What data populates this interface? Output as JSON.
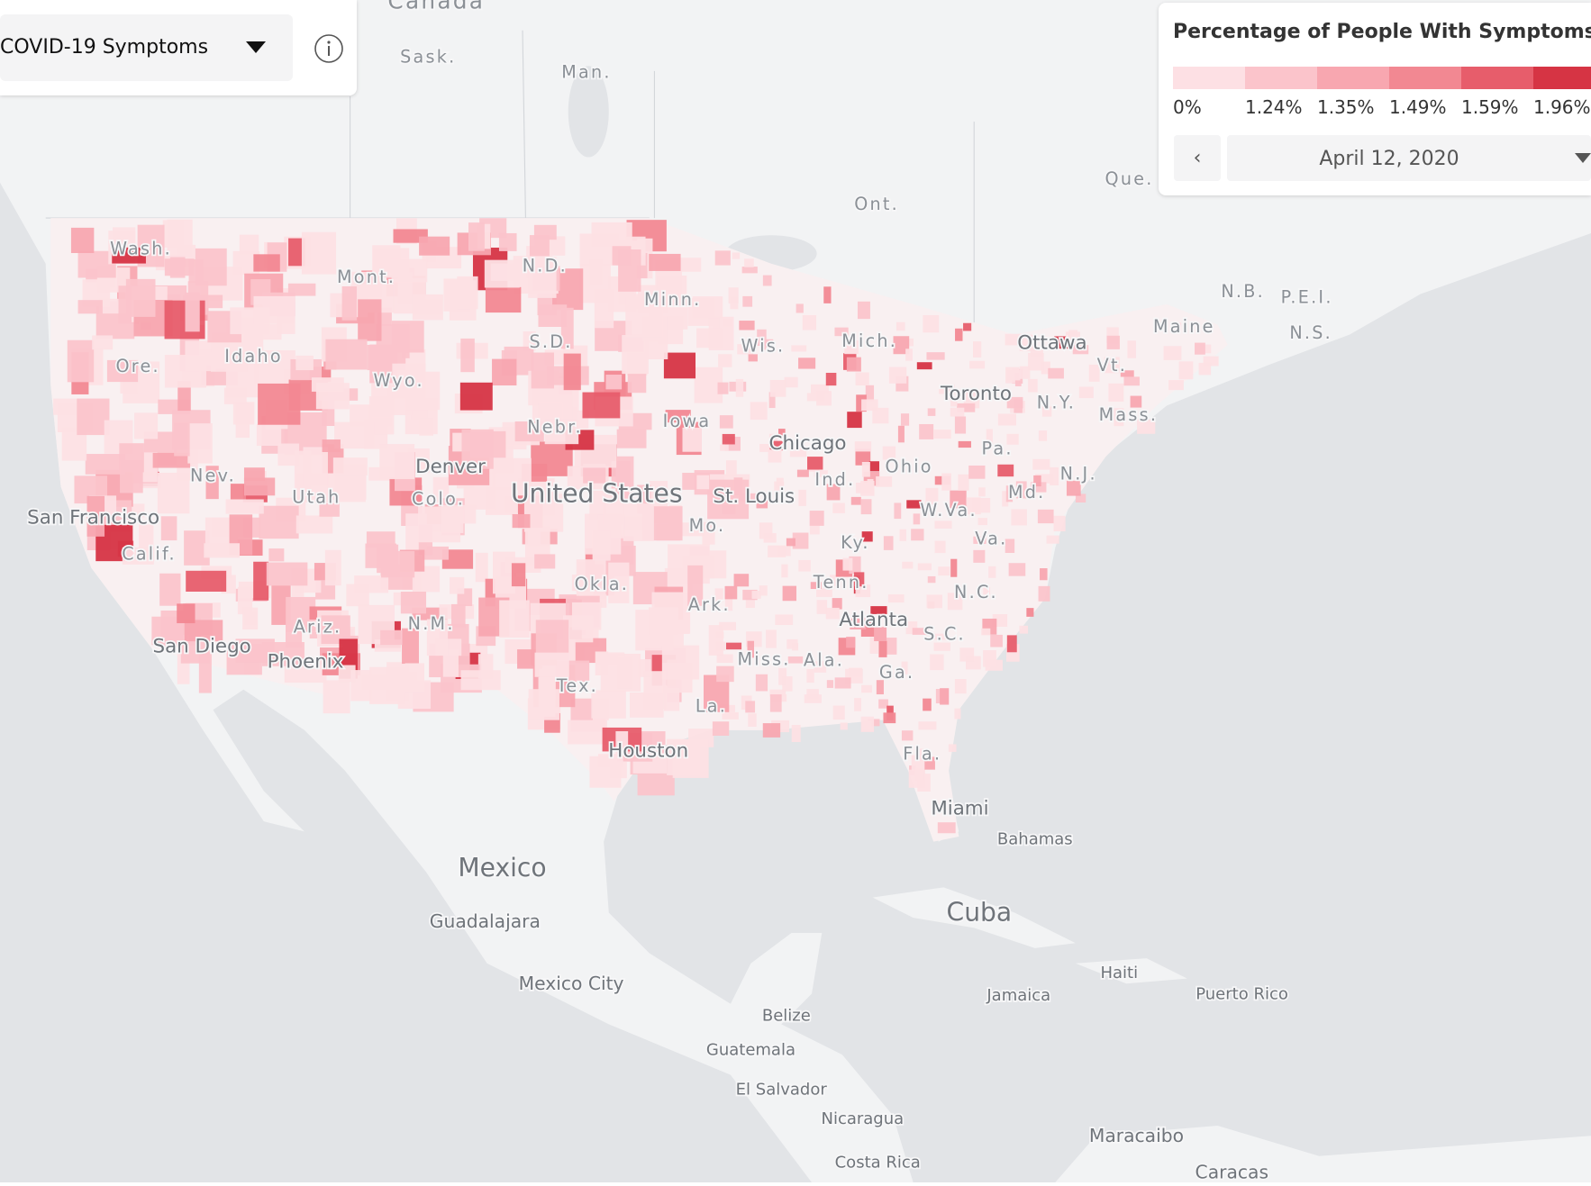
{
  "dropdown": {
    "label": "COVID-19 Symptoms"
  },
  "legend": {
    "title": "Percentage of People With Symptoms",
    "bins": [
      {
        "label": "0%",
        "color": "#fde0e4"
      },
      {
        "label": "1.24%",
        "color": "#fbc4cb"
      },
      {
        "label": "1.35%",
        "color": "#f8a7b0"
      },
      {
        "label": "1.49%",
        "color": "#f28892"
      },
      {
        "label": "1.59%",
        "color": "#e75d6b"
      },
      {
        "label": "1.96%",
        "color": "#d63444"
      }
    ],
    "date": "April 12, 2020"
  },
  "map_labels": [
    "Canada",
    "Sask.",
    "Man.",
    "Ont.",
    "Que.",
    "N.B.",
    "P.E.I.",
    "N.S.",
    "Ottawa",
    "Toronto",
    "Wash.",
    "Mont.",
    "N.D.",
    "Minn.",
    "S.D.",
    "Wis.",
    "Mich.",
    "Maine",
    "Vt.",
    "Ore.",
    "Idaho",
    "Wyo.",
    "N.Y.",
    "Mass.",
    "Iowa",
    "Nebr.",
    "Chicago",
    "Pa.",
    "Nev.",
    "Denver",
    "Ohio",
    "N.J.",
    "Utah",
    "Colo.",
    "United States",
    "St. Louis",
    "Ind.",
    "Md.",
    "San Francisco",
    "W.Va.",
    "Mo.",
    "Va.",
    "Ky.",
    "Calif.",
    "Tenn.",
    "Okla.",
    "N.C.",
    "Ark.",
    "Ariz.",
    "N.M.",
    "Atlanta",
    "S.C.",
    "San Diego",
    "Phoenix",
    "Miss.",
    "Ala.",
    "Ga.",
    "Tex.",
    "La.",
    "Houston",
    "Fla.",
    "Miami",
    "Bahamas",
    "Mexico",
    "Cuba",
    "Guadalajara",
    "Haiti",
    "Mexico City",
    "Jamaica",
    "Puerto Rico",
    "Belize",
    "Guatemala",
    "El Salvador",
    "Nicaragua",
    "Maracaibo",
    "Costa Rica",
    "Caracas"
  ]
}
